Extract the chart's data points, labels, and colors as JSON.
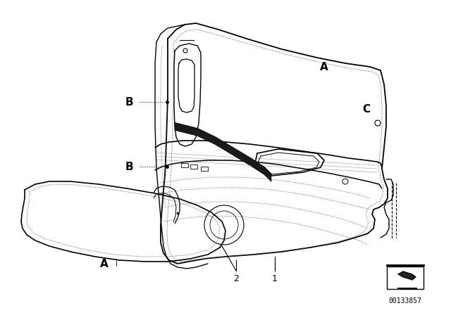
{
  "background_color": "#ffffff",
  "line_color": "#000000",
  "label_A_door": "A",
  "label_B1": "B",
  "label_B2": "B",
  "label_C": "C",
  "label_A_blade": "A",
  "callout_1": "1",
  "callout_2": "2",
  "part_number": "00133857",
  "figsize": [
    6.4,
    4.48
  ],
  "dpi": 100
}
